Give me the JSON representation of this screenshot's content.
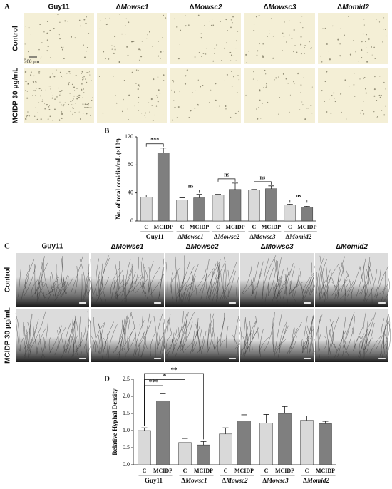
{
  "panel_labels": [
    "A",
    "B",
    "C",
    "D"
  ],
  "panel_a": {
    "columns": [
      "Guy11",
      "ΔMowsc1",
      "ΔMowsc2",
      "ΔMowsc3",
      "ΔMomid2"
    ],
    "rows": [
      "Control",
      "MCIDP 30 μg/mL"
    ],
    "scale_bar": "200 μm"
  },
  "panel_c": {
    "columns": [
      "Guy11",
      "ΔMowsc1",
      "ΔMowsc2",
      "ΔMowsc3",
      "ΔMomid2"
    ],
    "rows": [
      "Control",
      "MCIDP 30 μg/mL"
    ]
  },
  "chart_data": [
    {
      "type": "bar",
      "ylabel": "No. of total conidia/mL (×10⁴)",
      "categories": [
        "Guy11",
        "ΔMowsc1",
        "ΔMowsc2",
        "ΔMowsc3",
        "ΔMomid2"
      ],
      "series": [
        {
          "name": "C",
          "color": "#d9d9d9",
          "values": [
            34,
            30,
            37,
            44,
            23
          ],
          "errors": [
            3,
            3,
            1,
            1,
            1
          ]
        },
        {
          "name": "MCIDP",
          "color": "#7f7f7f",
          "values": [
            97,
            33,
            45,
            46,
            20
          ],
          "errors": [
            7,
            5,
            9,
            4,
            1
          ]
        }
      ],
      "significance": [
        "***",
        "ns",
        "ns",
        "ns",
        "ns"
      ],
      "ylim": [
        0,
        120
      ],
      "yticks": [
        0,
        40,
        80,
        120
      ]
    },
    {
      "type": "bar",
      "ylabel": "Relative Hyphal Density",
      "categories": [
        "Guy11",
        "ΔMowsc1",
        "ΔMowsc2",
        "ΔMowsc3",
        "ΔMomid2"
      ],
      "series": [
        {
          "name": "C",
          "color": "#d9d9d9",
          "values": [
            1.0,
            0.65,
            0.9,
            1.22,
            1.3
          ],
          "errors": [
            0.08,
            0.12,
            0.18,
            0.25,
            0.13
          ]
        },
        {
          "name": "MCIDP",
          "color": "#7f7f7f",
          "values": [
            1.87,
            0.58,
            1.28,
            1.5,
            1.2
          ],
          "errors": [
            0.2,
            0.1,
            0.18,
            0.2,
            0.07
          ]
        }
      ],
      "comparisons": [
        {
          "label": "***",
          "group": 0,
          "series": 1
        },
        {
          "label": "*",
          "group": 1,
          "series": 0
        },
        {
          "label": "**",
          "group": 1,
          "series": 1
        }
      ],
      "ylim": [
        0,
        2.5
      ],
      "yticks": [
        {
          "value": 0,
          "label": "0.0"
        },
        0.5,
        {
          "value": 1,
          "label": "1.0"
        },
        1.5,
        {
          "value": 2,
          "label": "2.0"
        },
        2.5
      ]
    }
  ]
}
